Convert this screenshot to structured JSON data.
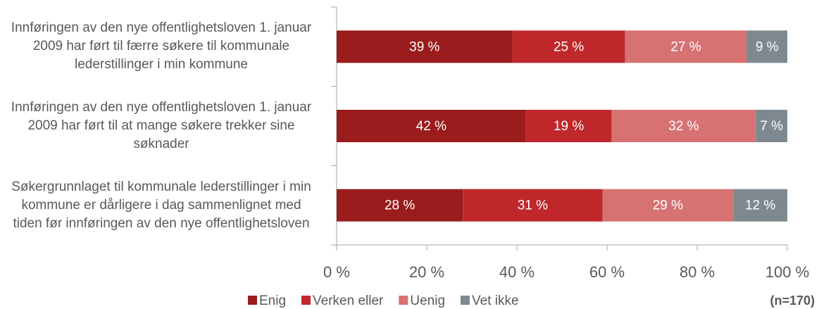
{
  "chart_data": {
    "type": "stacked_barh",
    "categories": [
      "Innføringen av den nye offentlighetsloven 1. januar 2009 har ført til færre søkere til kommunale lederstillinger i min kommune",
      "Innføringen av den nye offentlighetsloven 1. januar 2009 har ført til at mange søkere trekker sine søknader",
      "Søkergrunnlaget til kommunale lederstillinger i min kommune er dårligere i dag sammenlignet med tiden før innføringen av den nye offentlighetsloven"
    ],
    "series": [
      {
        "name": "Enig",
        "color": "#9b1c1c",
        "values": [
          39,
          42,
          28
        ],
        "value_labels": [
          "39 %",
          "42 %",
          "28 %"
        ]
      },
      {
        "name": "Verken eller",
        "color": "#c0272a",
        "values": [
          25,
          19,
          31
        ],
        "value_labels": [
          "25 %",
          "19 %",
          "31 %"
        ]
      },
      {
        "name": "Uenig",
        "color": "#d77272",
        "values": [
          27,
          32,
          29
        ],
        "value_labels": [
          "27 %",
          "32 %",
          "29 %"
        ]
      },
      {
        "name": "Vet ikke",
        "color": "#7e898f",
        "values": [
          9,
          7,
          12
        ],
        "value_labels": [
          "9 %",
          "7 %",
          "12 %"
        ]
      }
    ],
    "xlim": [
      0,
      100
    ],
    "xticks": [
      {
        "value": 0,
        "label": "0 %"
      },
      {
        "value": 20,
        "label": "20 %"
      },
      {
        "value": 40,
        "label": "40 %"
      },
      {
        "value": 60,
        "label": "60 %"
      },
      {
        "value": 80,
        "label": "80 %"
      },
      {
        "value": 100,
        "label": "100 %"
      }
    ],
    "grid": false,
    "legend": "bottom",
    "annotation": "(n=170)"
  }
}
